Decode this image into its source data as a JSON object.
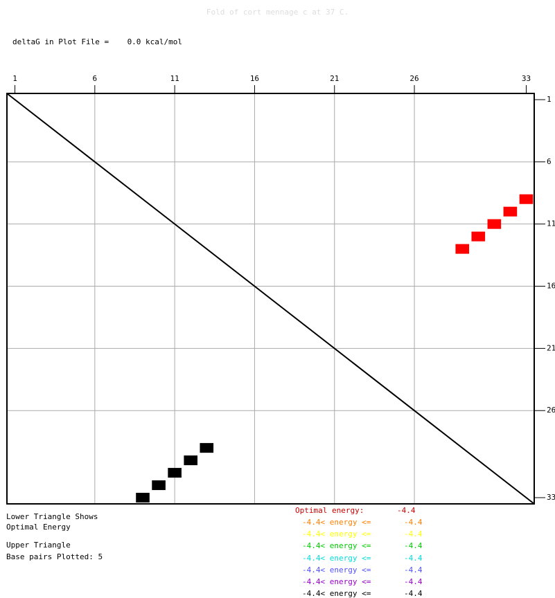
{
  "header": {
    "title": "Fold of cort mennage c at 37 C.",
    "delta_g": "deltaG in Plot File =    0.0 kcal/mol"
  },
  "notes": {
    "lower_1": "Lower Triangle Shows",
    "lower_2": "Optimal Energy",
    "upper_1": "Upper Triangle",
    "upper_2": "Base pairs Plotted: 5"
  },
  "legend": {
    "optimal": {
      "label": "Optimal energy:",
      "value": "-4.4",
      "color": "#cc0000"
    },
    "rows": [
      {
        "left": "-4.4< energy <=",
        "right": "-4.4",
        "color": "#ff8000"
      },
      {
        "left": "-4.4< energy <=",
        "right": "-4.4",
        "color": "#ffff00"
      },
      {
        "left": "-4.4< energy <=",
        "right": "-4.4",
        "color": "#00cc00"
      },
      {
        "left": "-4.4< energy <=",
        "right": "-4.4",
        "color": "#00dddd"
      },
      {
        "left": "-4.4< energy <=",
        "right": "-4.4",
        "color": "#5050ff"
      },
      {
        "left": "-4.4< energy <=",
        "right": "-4.4",
        "color": "#9900cc"
      },
      {
        "left": "-4.4< energy <=",
        "right": "-4.4",
        "color": "#000000"
      }
    ]
  },
  "chart_data": {
    "type": "heatmap",
    "title": "Fold of cort mennage c at 37 C.",
    "n": 33,
    "top_ticks": [
      1,
      6,
      11,
      16,
      21,
      26,
      33
    ],
    "right_ticks": [
      1,
      6,
      11,
      16,
      21,
      26,
      33
    ],
    "grid": true,
    "diagonal": true,
    "lower_triangle": {
      "label": "Optimal Energy",
      "color": "#000000",
      "pairs": [
        [
          9,
          33
        ],
        [
          10,
          32
        ],
        [
          11,
          31
        ],
        [
          12,
          30
        ],
        [
          13,
          29
        ]
      ]
    },
    "upper_triangle": {
      "label": "Base pairs Plotted: 5",
      "color": "#ff0000",
      "pairs": [
        [
          9,
          33
        ],
        [
          10,
          32
        ],
        [
          11,
          31
        ],
        [
          12,
          30
        ],
        [
          13,
          29
        ]
      ]
    }
  }
}
